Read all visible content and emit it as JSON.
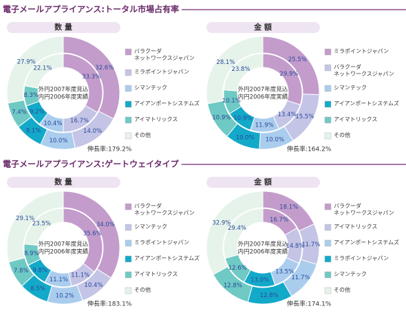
{
  "headers": [
    "電子メールアプライアンス:トータル市場占有率",
    "電子メールアプライアンス:ゲートウェイタイプ"
  ],
  "chart_data": [
    {
      "type": "donut",
      "title": "数 量",
      "center_lines": [
        "外円2007年度見込",
        "内円2006年度実績"
      ],
      "note": "伸長率:179.2%",
      "categories": [
        "バラクーダ\nネットワークスジャパン",
        "ミラポイントジャパン",
        "シマンテック",
        "アイアンポートシステムズ",
        "アイマトリックス",
        "その他"
      ],
      "colors": [
        "#c39ccb",
        "#c4c4e6",
        "#aacdee",
        "#13a9c9",
        "#6fc9c4",
        "#e6f3ea"
      ],
      "series": [
        {
          "values": [
            32.6,
            14.0,
            10.0,
            8.1,
            7.4,
            27.9
          ],
          "value_labels": [
            "32.6%",
            "14.0%",
            "10.0%",
            "8.1%",
            "7.4%",
            "27.9%"
          ]
        },
        {
          "values": [
            33.3,
            16.7,
            10.4,
            9.2,
            8.3,
            22.1
          ],
          "value_labels": [
            "33.3%",
            "16.7%",
            "10.4%",
            "9.2%",
            "8.3%",
            "22.1%"
          ]
        }
      ]
    },
    {
      "type": "donut",
      "title": "金 額",
      "center_lines": [
        "外円2007年度見込",
        "内円2006年度実績"
      ],
      "note": "伸長率:164.2%",
      "categories": [
        "ミラポイントジャパン",
        "バラクーダ\nネットワークスジャパン",
        "シマンテック",
        "アイアンポートシステムズ",
        "アイマトリックス",
        "その他"
      ],
      "colors": [
        "#c39ccb",
        "#c4c4e6",
        "#aacdee",
        "#13a9c9",
        "#6fc9c4",
        "#e6f3ea"
      ],
      "series": [
        {
          "values": [
            25.5,
            15.5,
            10.0,
            10.0,
            10.9,
            28.1
          ],
          "value_labels": [
            "25.5%",
            "15.5%",
            "10.0%",
            "10.0%",
            "10.9%",
            "28.1%"
          ]
        },
        {
          "values": [
            29.9,
            13.4,
            11.9,
            10.9,
            10.1,
            23.8
          ],
          "value_labels": [
            "29.9%",
            "13.4%",
            "11.9%",
            "10.9%",
            "10.1%",
            "23.8%"
          ]
        }
      ]
    },
    {
      "type": "donut",
      "title": "数 量",
      "center_lines": [
        "外円2007年度見込",
        "内円2006年度実績"
      ],
      "note": "伸長率:183.1%",
      "categories": [
        "バラクーダ\nネットワークスジャパン",
        "シマンテック",
        "ミラポイントジャパン",
        "アイアンポートシステムズ",
        "アイマトリックス",
        "その他"
      ],
      "colors": [
        "#c39ccb",
        "#c4c4e6",
        "#aacdee",
        "#13a9c9",
        "#6fc9c4",
        "#e6f3ea"
      ],
      "series": [
        {
          "values": [
            34.0,
            10.4,
            10.2,
            8.5,
            7.8,
            29.1
          ],
          "value_labels": [
            "34.0%",
            "10.4%",
            "10.2%",
            "8.5%",
            "7.8%",
            "29.1%"
          ]
        },
        {
          "values": [
            35.6,
            11.1,
            11.1,
            9.8,
            8.9,
            23.5
          ],
          "value_labels": [
            "35.6%",
            "11.1%",
            "11.1%",
            "9.8%",
            "8.9%",
            "23.5%"
          ]
        }
      ]
    },
    {
      "type": "donut",
      "title": "金 額",
      "center_lines": [
        "外円2007年度見込",
        "内円2006年度実績"
      ],
      "note": "伸長率:174.1%",
      "categories": [
        "バラクーダ\nネットワークスジャパン",
        "アイマトリックス",
        "アイアンポートシステムズ",
        "ミラポイントジャパン",
        "シマンテック",
        "その他"
      ],
      "colors": [
        "#c39ccb",
        "#c4c4e6",
        "#aacdee",
        "#13a9c9",
        "#6fc9c4",
        "#e6f3ea"
      ],
      "series": [
        {
          "values": [
            18.1,
            11.7,
            11.7,
            12.8,
            12.8,
            32.9
          ],
          "value_labels": [
            "18.1%",
            "11.7%",
            "11.7%",
            "12.8%",
            "12.8%",
            "32.9%"
          ]
        },
        {
          "values": [
            16.7,
            14.8,
            13.5,
            13.0,
            12.6,
            29.4
          ],
          "value_labels": [
            "16.7%",
            "14.8%",
            "13.5%",
            "13.0%",
            "12.6%",
            "29.4%"
          ]
        }
      ]
    }
  ]
}
